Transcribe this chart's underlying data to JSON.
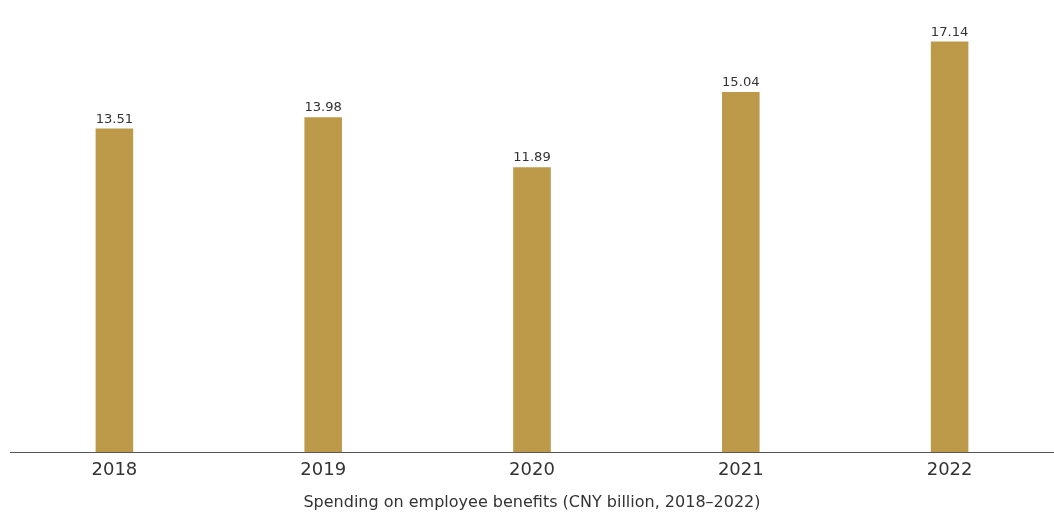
{
  "chart_data": {
    "type": "bar",
    "xlabel": "Spending on employee benefits (CNY billion, 2018–2022)",
    "categories": [
      "2018",
      "2019",
      "2020",
      "2021",
      "2022"
    ],
    "values": [
      13.51,
      13.98,
      11.89,
      15.04,
      17.14
    ],
    "color": "#bc9a4a",
    "data_labels": true,
    "legend": false,
    "tick_labels": "x"
  }
}
